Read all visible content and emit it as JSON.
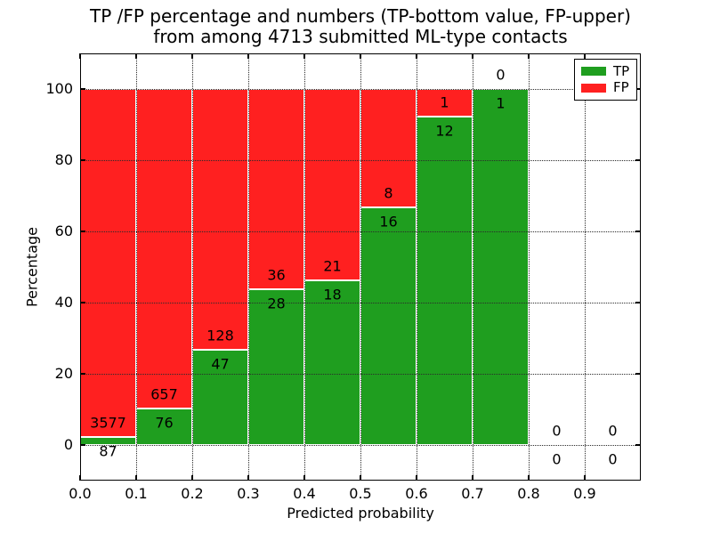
{
  "chart_data": {
    "type": "bar",
    "stacked": true,
    "normalized_to_percent": true,
    "title_line1": "TP /FP percentage and numbers (TP-bottom value, FP-upper)",
    "title_line2": "from among 4713 submitted ML-type contacts",
    "xlabel": "Predicted probability",
    "ylabel": "Percentage",
    "xlim": [
      0.0,
      1.0
    ],
    "ylim": [
      -10,
      110
    ],
    "grid": "dotted",
    "bin_width": 0.1,
    "bin_left_edges": [
      0.0,
      0.1,
      0.2,
      0.3,
      0.4,
      0.5,
      0.6,
      0.7,
      0.8,
      0.9
    ],
    "xtick_labels": [
      "0.0",
      "0.1",
      "0.2",
      "0.3",
      "0.4",
      "0.5",
      "0.6",
      "0.7",
      "0.8",
      "0.9"
    ],
    "ytick_values": [
      0,
      20,
      40,
      60,
      80,
      100
    ],
    "series": [
      {
        "name": "TP",
        "color": "#1f9e1f",
        "counts": [
          87,
          76,
          47,
          28,
          18,
          16,
          12,
          1,
          0,
          0
        ]
      },
      {
        "name": "FP",
        "color": "#ff2020",
        "counts": [
          3577,
          657,
          128,
          36,
          21,
          8,
          1,
          0,
          0,
          0
        ]
      }
    ],
    "tp_percent": [
      2.37,
      10.37,
      26.86,
      43.75,
      46.15,
      66.67,
      92.31,
      100.0,
      0,
      0
    ],
    "total_contacts": 4713,
    "legend": {
      "position": "upper right",
      "entries": [
        {
          "label": "TP",
          "color": "#1f9e1f"
        },
        {
          "label": "FP",
          "color": "#ff2020"
        }
      ]
    }
  },
  "colors": {
    "background": "#ffffff",
    "text": "#000000",
    "grid": "#2b2b2b",
    "bar_edge": "#ffffff",
    "spine": "#000000"
  }
}
